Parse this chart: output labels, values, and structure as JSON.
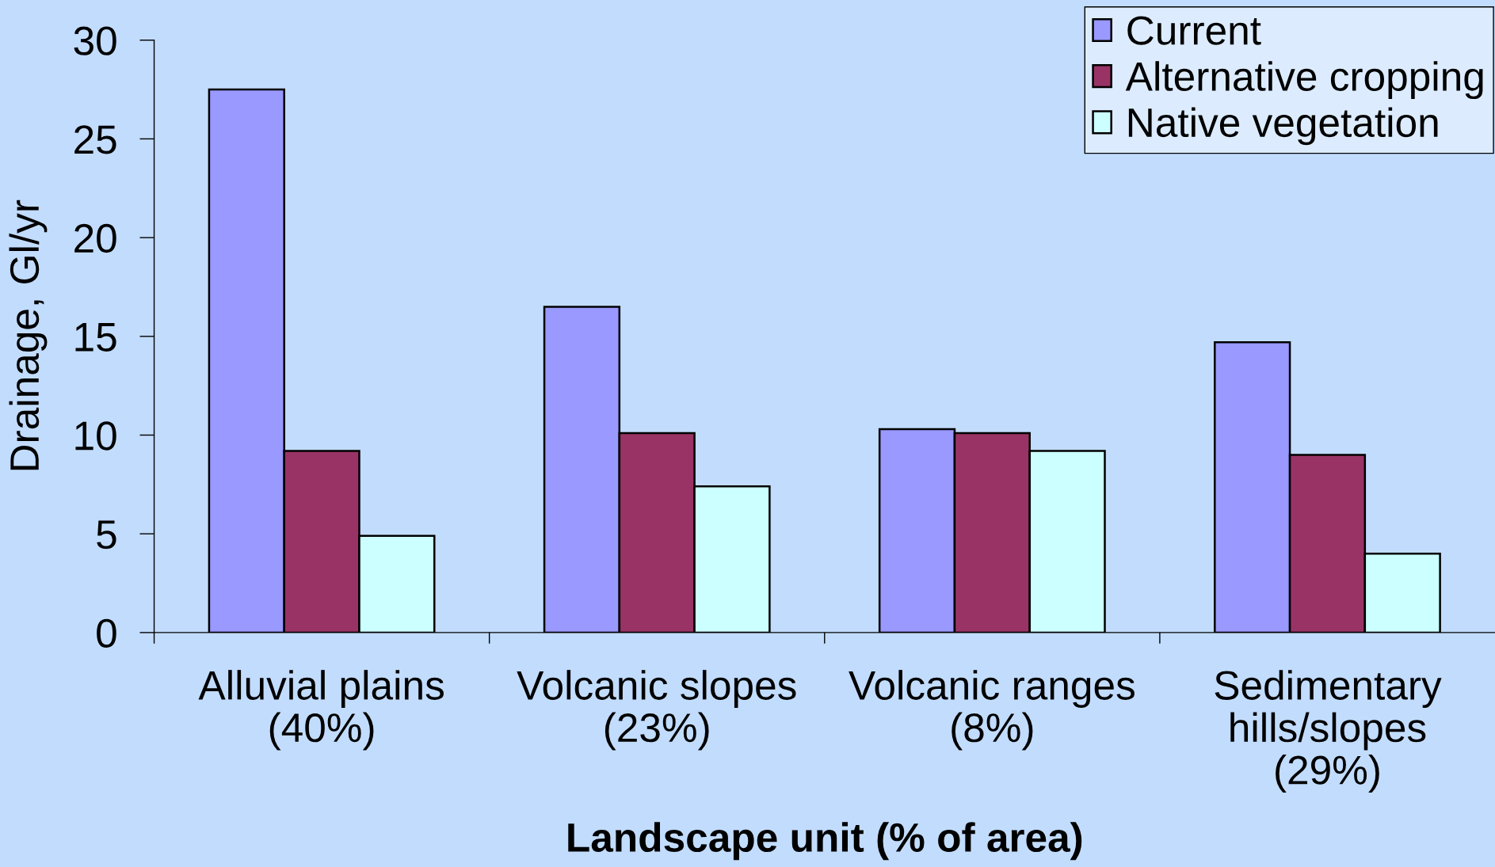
{
  "chart_data": {
    "type": "bar",
    "xlabel": "Landscape unit (% of area)",
    "ylabel": "Drainage, Gl/yr",
    "categories": [
      "Alluvial plains\n(40%)",
      "Volcanic slopes\n(23%)",
      "Volcanic ranges\n(8%)",
      "Sedimentary\nhills/slopes\n(29%)"
    ],
    "series": [
      {
        "name": "Current",
        "color": "#9999ff",
        "values": [
          27.5,
          16.5,
          10.3,
          14.7
        ]
      },
      {
        "name": "Alternative cropping",
        "color": "#993366",
        "values": [
          9.2,
          10.1,
          10.1,
          9.0
        ]
      },
      {
        "name": "Native vegetation",
        "color": "#ccffff",
        "values": [
          4.9,
          7.4,
          9.2,
          4.0
        ]
      }
    ],
    "ylim": [
      0,
      30
    ],
    "yticks": [
      0,
      5,
      10,
      15,
      20,
      25,
      30
    ],
    "grid": false,
    "legend": "top right"
  }
}
